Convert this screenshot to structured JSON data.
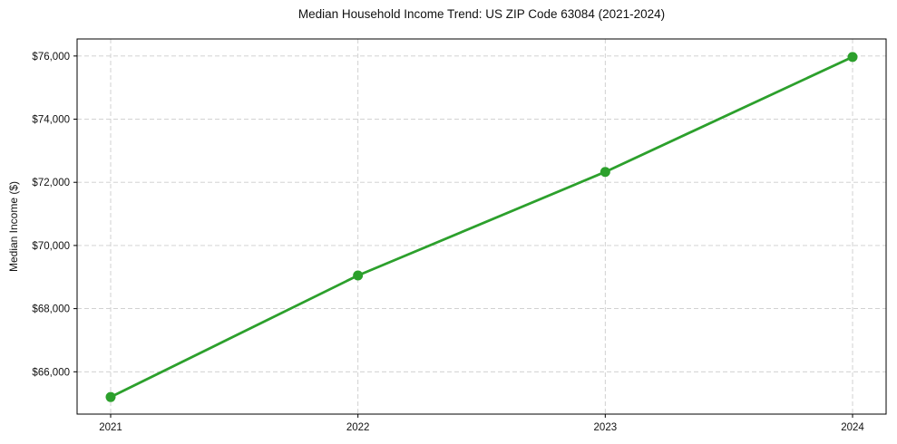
{
  "chart_data": {
    "type": "line",
    "title": "Median Household Income Trend: US ZIP Code 63084 (2021-2024)",
    "xlabel": "",
    "ylabel": "Median Income ($)",
    "categories": [
      "2021",
      "2022",
      "2023",
      "2024"
    ],
    "values": [
      65200,
      69050,
      72330,
      75970
    ],
    "y_ticks": [
      66000,
      68000,
      70000,
      72000,
      74000,
      76000
    ],
    "y_tick_labels": [
      "$66,000",
      "$68,000",
      "$70,000",
      "$72,000",
      "$74,000",
      "$76,000"
    ],
    "ylim": [
      64660,
      76540
    ],
    "grid": "both",
    "grid_style": "dashed",
    "legend": "none"
  },
  "colors": {
    "line": "#2ca02c",
    "marker": "#2ca02c",
    "grid": "#cccccc",
    "axis": "#000000",
    "text": "#111111",
    "background": "#ffffff"
  }
}
